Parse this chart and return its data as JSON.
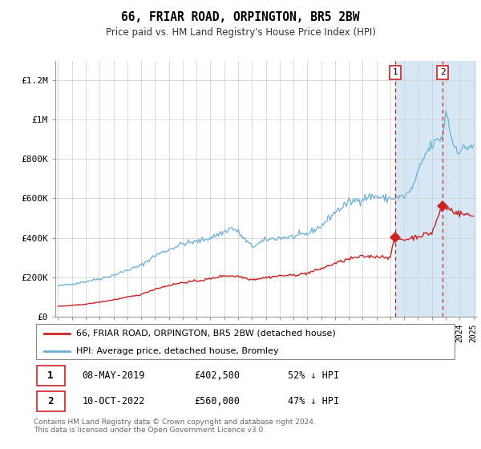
{
  "title": "66, FRIAR ROAD, ORPINGTON, BR5 2BW",
  "subtitle": "Price paid vs. HM Land Registry's House Price Index (HPI)",
  "ylabel_ticks": [
    "£0",
    "£200K",
    "£400K",
    "£600K",
    "£800K",
    "£1M",
    "£1.2M"
  ],
  "ytick_values": [
    0,
    200000,
    400000,
    600000,
    800000,
    1000000,
    1200000
  ],
  "ylim": [
    0,
    1300000
  ],
  "hpi_color": "#6ab0d8",
  "price_color": "#cc2222",
  "dashed_color": "#cc2222",
  "shaded_color": "#d6e8f5",
  "sale1": {
    "label": "1",
    "date": "08-MAY-2019",
    "price": "£402,500",
    "pct": "52% ↓ HPI",
    "year": 2019.35
  },
  "sale2": {
    "label": "2",
    "date": "10-OCT-2022",
    "price": "£560,000",
    "pct": "47% ↓ HPI",
    "year": 2022.78
  },
  "legend_line1": "66, FRIAR ROAD, ORPINGTON, BR5 2BW (detached house)",
  "legend_line2": "HPI: Average price, detached house, Bromley",
  "footer": "Contains HM Land Registry data © Crown copyright and database right 2024.\nThis data is licensed under the Open Government Licence v3.0.",
  "xstart": 1995,
  "xend": 2025
}
